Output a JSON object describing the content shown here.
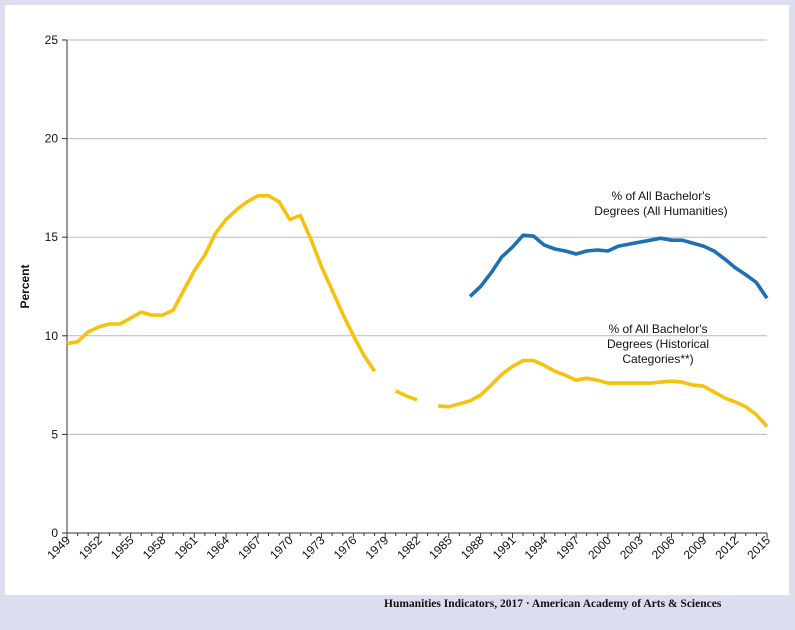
{
  "chart_data": {
    "type": "line",
    "ylabel": "Percent",
    "ylim": [
      0,
      25
    ],
    "xlim": [
      1949,
      2015
    ],
    "yticks": [
      0,
      5,
      10,
      15,
      20,
      25
    ],
    "xticks": [
      1949,
      1952,
      1955,
      1958,
      1961,
      1964,
      1967,
      1970,
      1973,
      1976,
      1979,
      1982,
      1985,
      1988,
      1991,
      1994,
      1997,
      2000,
      2003,
      2006,
      2009,
      2012,
      2015
    ],
    "grid": true,
    "colors": {
      "all_humanities": "#1f6fb2",
      "historical": "#f5c20d"
    },
    "series": [
      {
        "name": "% of All Bachelor's Degrees (All Humanities)",
        "label_lines": [
          "% of All Bachelor's",
          "Degrees  (All Humanities)"
        ],
        "color": "#1f6fb2",
        "points": [
          [
            1987,
            12.0
          ],
          [
            1988,
            12.5
          ],
          [
            1989,
            13.2
          ],
          [
            1990,
            14.0
          ],
          [
            1991,
            14.5
          ],
          [
            1992,
            15.1
          ],
          [
            1993,
            15.05
          ],
          [
            1994,
            14.6
          ],
          [
            1995,
            14.4
          ],
          [
            1996,
            14.3
          ],
          [
            1997,
            14.15
          ],
          [
            1998,
            14.3
          ],
          [
            1999,
            14.35
          ],
          [
            2000,
            14.3
          ],
          [
            2001,
            14.55
          ],
          [
            2002,
            14.65
          ],
          [
            2003,
            14.75
          ],
          [
            2004,
            14.85
          ],
          [
            2005,
            14.95
          ],
          [
            2006,
            14.85
          ],
          [
            2007,
            14.85
          ],
          [
            2008,
            14.7
          ],
          [
            2009,
            14.55
          ],
          [
            2010,
            14.3
          ],
          [
            2011,
            13.9
          ],
          [
            2012,
            13.45
          ],
          [
            2013,
            13.1
          ],
          [
            2014,
            12.7
          ],
          [
            2015,
            11.9
          ]
        ]
      },
      {
        "name": "% of All Bachelor's Degrees (Historical Categories**)",
        "label_lines": [
          "% of All Bachelor's",
          "Degrees  (Historical",
          "Categories**)"
        ],
        "color": "#f5c20d",
        "segments": [
          [
            [
              1949,
              9.6
            ],
            [
              1950,
              9.7
            ],
            [
              1951,
              10.2
            ],
            [
              1952,
              10.45
            ],
            [
              1953,
              10.6
            ],
            [
              1954,
              10.6
            ],
            [
              1955,
              10.9
            ],
            [
              1956,
              11.2
            ],
            [
              1957,
              11.05
            ],
            [
              1958,
              11.05
            ],
            [
              1959,
              11.3
            ],
            [
              1960,
              12.3
            ],
            [
              1961,
              13.3
            ],
            [
              1962,
              14.1
            ],
            [
              1963,
              15.2
            ],
            [
              1964,
              15.9
            ],
            [
              1965,
              16.4
            ],
            [
              1966,
              16.8
            ],
            [
              1967,
              17.1
            ],
            [
              1968,
              17.1
            ],
            [
              1969,
              16.8
            ],
            [
              1970,
              15.9
            ],
            [
              1971,
              16.1
            ],
            [
              1972,
              14.9
            ],
            [
              1973,
              13.5
            ],
            [
              1974,
              12.3
            ],
            [
              1975,
              11.1
            ],
            [
              1976,
              10.0
            ],
            [
              1977,
              9.0
            ],
            [
              1978,
              8.2
            ]
          ],
          [
            [
              1980,
              7.2
            ],
            [
              1981,
              6.95
            ],
            [
              1982,
              6.75
            ]
          ],
          [
            [
              1984,
              6.45
            ],
            [
              1985,
              6.4
            ],
            [
              1986,
              6.55
            ],
            [
              1987,
              6.7
            ],
            [
              1988,
              7.0
            ],
            [
              1989,
              7.5
            ],
            [
              1990,
              8.05
            ],
            [
              1991,
              8.45
            ],
            [
              1992,
              8.75
            ],
            [
              1993,
              8.75
            ],
            [
              1994,
              8.5
            ],
            [
              1995,
              8.2
            ],
            [
              1996,
              8.0
            ],
            [
              1997,
              7.75
            ],
            [
              1998,
              7.85
            ],
            [
              1999,
              7.75
            ],
            [
              2000,
              7.6
            ],
            [
              2001,
              7.6
            ],
            [
              2002,
              7.6
            ],
            [
              2003,
              7.6
            ],
            [
              2004,
              7.6
            ],
            [
              2005,
              7.65
            ],
            [
              2006,
              7.7
            ],
            [
              2007,
              7.65
            ],
            [
              2008,
              7.5
            ],
            [
              2009,
              7.45
            ],
            [
              2010,
              7.15
            ],
            [
              2011,
              6.85
            ],
            [
              2012,
              6.65
            ],
            [
              2013,
              6.4
            ],
            [
              2014,
              6.0
            ],
            [
              2015,
              5.4
            ]
          ]
        ]
      }
    ]
  },
  "footer": {
    "credit": "Humanities  Indicators, 2017 · American Academy  of Arts & Sciences"
  }
}
